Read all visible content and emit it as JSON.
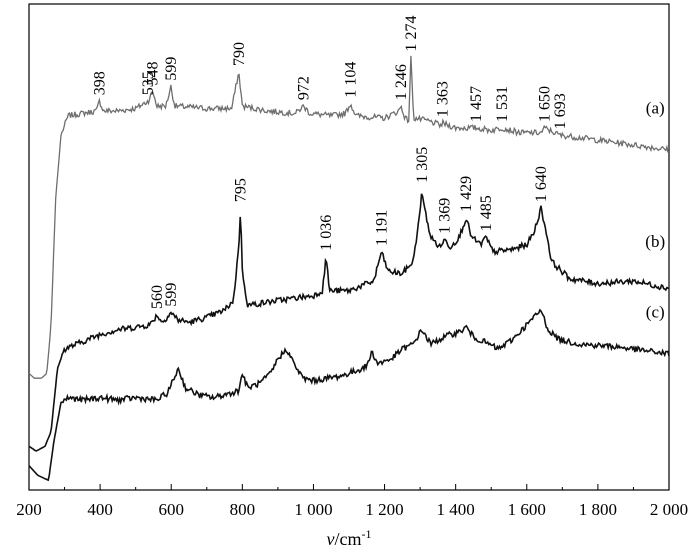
{
  "chart_data": {
    "type": "line",
    "xlabel_var": "v",
    "xlabel_unit": "/cm",
    "xlabel_sup": "-1",
    "xlim": [
      200,
      2000
    ],
    "x_ticks": [
      200,
      400,
      600,
      800,
      1000,
      1200,
      1400,
      1600,
      1800,
      2000
    ],
    "x_tick_labels": [
      "200",
      "400",
      "600",
      "800",
      "1 000",
      "1 200",
      "1 400",
      "1 600",
      "1 800",
      "2 000"
    ],
    "ylim": [
      0,
      1
    ],
    "grid": false,
    "series": [
      {
        "name": "(a)",
        "color": "#6e6e6e",
        "x": [
          200,
          215,
          235,
          250,
          262,
          275,
          290,
          310,
          350,
          390,
          398,
          410,
          450,
          500,
          535,
          548,
          560,
          585,
          599,
          610,
          700,
          770,
          790,
          800,
          870,
          950,
          972,
          990,
          1050,
          1090,
          1104,
          1120,
          1200,
          1240,
          1246,
          1258,
          1268,
          1274,
          1282,
          1320,
          1360,
          1363,
          1400,
          1457,
          1500,
          1531,
          1580,
          1640,
          1650,
          1693,
          1750,
          1850,
          1950,
          2000
        ],
        "y": [
          0.24,
          0.23,
          0.23,
          0.24,
          0.34,
          0.6,
          0.73,
          0.77,
          0.775,
          0.78,
          0.8,
          0.78,
          0.78,
          0.785,
          0.8,
          0.82,
          0.79,
          0.79,
          0.83,
          0.79,
          0.785,
          0.785,
          0.86,
          0.79,
          0.78,
          0.775,
          0.79,
          0.775,
          0.77,
          0.775,
          0.795,
          0.77,
          0.765,
          0.78,
          0.79,
          0.765,
          0.76,
          0.89,
          0.765,
          0.76,
          0.75,
          0.755,
          0.745,
          0.745,
          0.74,
          0.745,
          0.735,
          0.735,
          0.745,
          0.73,
          0.725,
          0.715,
          0.705,
          0.7
        ]
      },
      {
        "name": "(b)",
        "color": "#111111",
        "x": [
          200,
          220,
          245,
          262,
          280,
          300,
          350,
          400,
          450,
          500,
          540,
          560,
          575,
          599,
          620,
          650,
          700,
          750,
          775,
          790,
          795,
          800,
          815,
          900,
          1000,
          1025,
          1036,
          1045,
          1100,
          1170,
          1191,
          1210,
          1250,
          1280,
          1300,
          1305,
          1312,
          1330,
          1355,
          1369,
          1385,
          1410,
          1429,
          1445,
          1470,
          1485,
          1505,
          1560,
          1600,
          1620,
          1640,
          1655,
          1670,
          1720,
          1800,
          1900,
          2000
        ],
        "y": [
          0.09,
          0.08,
          0.09,
          0.12,
          0.25,
          0.29,
          0.305,
          0.32,
          0.33,
          0.335,
          0.34,
          0.36,
          0.345,
          0.365,
          0.35,
          0.345,
          0.355,
          0.37,
          0.39,
          0.5,
          0.58,
          0.45,
          0.38,
          0.39,
          0.4,
          0.41,
          0.48,
          0.41,
          0.41,
          0.43,
          0.49,
          0.45,
          0.445,
          0.47,
          0.57,
          0.62,
          0.58,
          0.52,
          0.5,
          0.515,
          0.5,
          0.52,
          0.56,
          0.52,
          0.505,
          0.52,
          0.49,
          0.495,
          0.505,
          0.53,
          0.58,
          0.53,
          0.47,
          0.435,
          0.425,
          0.43,
          0.415
        ]
      },
      {
        "name": "(c)",
        "color": "#111111",
        "x": [
          200,
          225,
          255,
          270,
          290,
          310,
          350,
          400,
          450,
          500,
          560,
          590,
          620,
          640,
          680,
          720,
          770,
          790,
          800,
          815,
          850,
          880,
          900,
          925,
          945,
          970,
          1000,
          1040,
          1080,
          1120,
          1150,
          1165,
          1180,
          1220,
          1250,
          1280,
          1305,
          1330,
          1355,
          1385,
          1410,
          1430,
          1450,
          1480,
          1520,
          1560,
          1600,
          1620,
          1640,
          1660,
          1690,
          1750,
          1850,
          1950,
          2000
        ],
        "y": [
          0.05,
          0.03,
          0.02,
          0.1,
          0.18,
          0.19,
          0.185,
          0.19,
          0.185,
          0.19,
          0.185,
          0.2,
          0.25,
          0.21,
          0.195,
          0.19,
          0.2,
          0.205,
          0.24,
          0.21,
          0.22,
          0.24,
          0.27,
          0.29,
          0.26,
          0.23,
          0.225,
          0.23,
          0.235,
          0.245,
          0.255,
          0.285,
          0.26,
          0.27,
          0.29,
          0.3,
          0.33,
          0.3,
          0.31,
          0.32,
          0.325,
          0.335,
          0.315,
          0.305,
          0.29,
          0.31,
          0.34,
          0.355,
          0.37,
          0.33,
          0.31,
          0.3,
          0.295,
          0.285,
          0.28
        ]
      }
    ],
    "peak_labels": [
      {
        "series": 0,
        "x": 398,
        "text": "398"
      },
      {
        "series": 0,
        "x": 535,
        "text": "535"
      },
      {
        "series": 0,
        "x": 548,
        "text": "548"
      },
      {
        "series": 0,
        "x": 599,
        "text": "599"
      },
      {
        "series": 0,
        "x": 790,
        "text": "790"
      },
      {
        "series": 0,
        "x": 972,
        "text": "972"
      },
      {
        "series": 0,
        "x": 1104,
        "text": "1 104"
      },
      {
        "series": 0,
        "x": 1246,
        "text": "1 246"
      },
      {
        "series": 0,
        "x": 1274,
        "text": "1 274"
      },
      {
        "series": 0,
        "x": 1363,
        "text": "1 363"
      },
      {
        "series": 0,
        "x": 1457,
        "text": "1 457"
      },
      {
        "series": 0,
        "x": 1531,
        "text": "1 531"
      },
      {
        "series": 0,
        "x": 1650,
        "text": "1 650"
      },
      {
        "series": 0,
        "x": 1693,
        "text": "1 693"
      },
      {
        "series": 1,
        "x": 560,
        "text": "560"
      },
      {
        "series": 1,
        "x": 599,
        "text": "599"
      },
      {
        "series": 1,
        "x": 795,
        "text": "795"
      },
      {
        "series": 1,
        "x": 1036,
        "text": "1 036"
      },
      {
        "series": 1,
        "x": 1191,
        "text": "1 191"
      },
      {
        "series": 1,
        "x": 1305,
        "text": "1 305"
      },
      {
        "series": 1,
        "x": 1369,
        "text": "1 369"
      },
      {
        "series": 1,
        "x": 1429,
        "text": "1 429"
      },
      {
        "series": 1,
        "x": 1485,
        "text": "1 485"
      },
      {
        "series": 1,
        "x": 1640,
        "text": "1 640"
      }
    ]
  }
}
